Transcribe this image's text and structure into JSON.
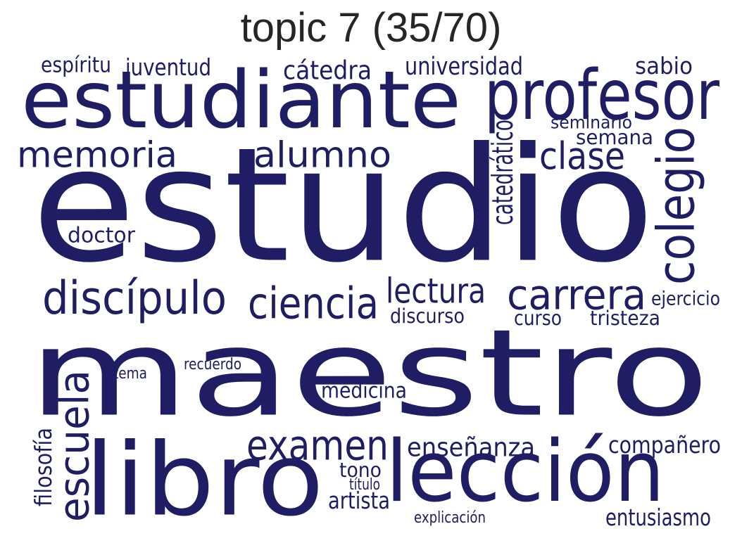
{
  "title": "topic 7 (35/70)",
  "word_color": "#1f1d64",
  "title_color": "#262626",
  "words": [
    {
      "text": "maestro"
    },
    {
      "text": "estudio"
    },
    {
      "text": "estudiante"
    },
    {
      "text": "libro"
    },
    {
      "text": "lección"
    },
    {
      "text": "profesor"
    },
    {
      "text": "discípulo"
    },
    {
      "text": "ciencia"
    },
    {
      "text": "carrera"
    },
    {
      "text": "examen"
    },
    {
      "text": "colegio"
    },
    {
      "text": "memoria"
    },
    {
      "text": "alumno"
    },
    {
      "text": "escuela"
    },
    {
      "text": "clase"
    },
    {
      "text": "lectura"
    },
    {
      "text": "cátedra"
    },
    {
      "text": "universidad"
    },
    {
      "text": "juventud"
    },
    {
      "text": "espíritu"
    },
    {
      "text": "sabio"
    },
    {
      "text": "seminario"
    },
    {
      "text": "semana"
    },
    {
      "text": "catedrático"
    },
    {
      "text": "doctor"
    },
    {
      "text": "discurso"
    },
    {
      "text": "curso"
    },
    {
      "text": "tristeza"
    },
    {
      "text": "ejercicio"
    },
    {
      "text": "enseñanza"
    },
    {
      "text": "compañero"
    },
    {
      "text": "medicina"
    },
    {
      "text": "tono"
    },
    {
      "text": "título"
    },
    {
      "text": "artista"
    },
    {
      "text": "filosofía"
    },
    {
      "text": "entusiasmo"
    },
    {
      "text": "explicación"
    },
    {
      "text": "tema"
    },
    {
      "text": "recuerdo"
    }
  ]
}
